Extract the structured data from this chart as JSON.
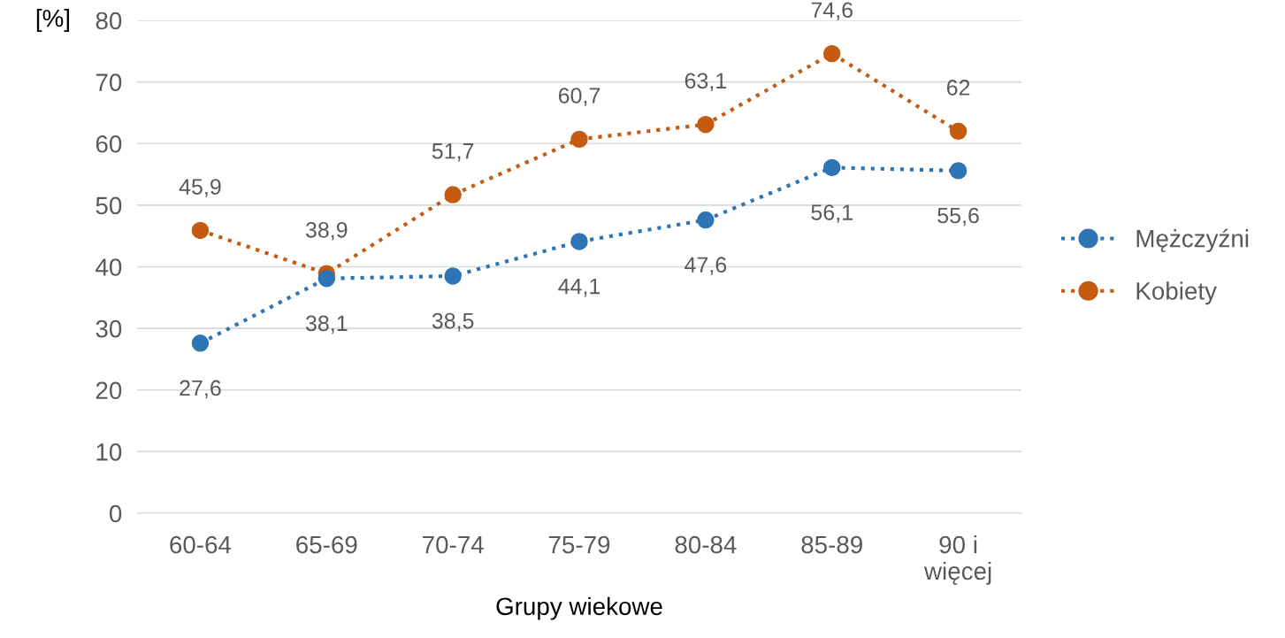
{
  "chart_data": {
    "type": "line",
    "ylabel": "[%]",
    "xlabel": "Grupy wiekowe",
    "categories": [
      "60-64",
      "65-69",
      "70-74",
      "75-79",
      "80-84",
      "85-89",
      "90 i\nwięcej"
    ],
    "series": [
      {
        "name": "Mężczyźni",
        "color": "#2e75b6",
        "values": [
          27.6,
          38.1,
          38.5,
          44.1,
          47.6,
          56.1,
          55.6
        ],
        "value_labels": [
          "27,6",
          "38,1",
          "38,5",
          "44,1",
          "47,6",
          "56,1",
          "55,6"
        ]
      },
      {
        "name": "Kobiety",
        "color": "#c55a11",
        "values": [
          45.9,
          38.9,
          51.7,
          60.7,
          63.1,
          74.6,
          62
        ],
        "value_labels": [
          "45,9",
          "38,9",
          "51,7",
          "60,7",
          "63,1",
          "74,6",
          "62"
        ]
      }
    ],
    "ylim": [
      0,
      80
    ],
    "yticks": [
      0,
      10,
      20,
      30,
      40,
      50,
      60,
      70,
      80
    ],
    "grid": "y",
    "legend": "right",
    "marker": "circle",
    "line_style": "dotted"
  }
}
